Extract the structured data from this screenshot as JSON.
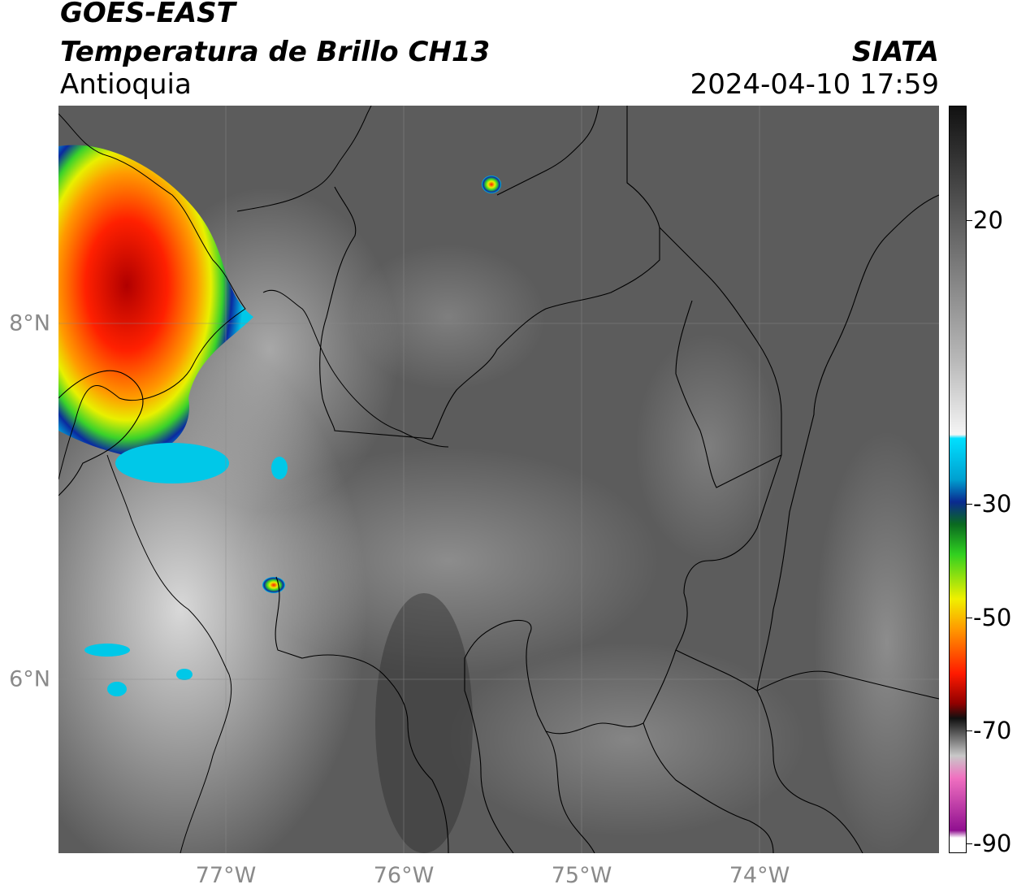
{
  "header": {
    "satellite": "GOES-EAST",
    "product": "Temperatura de Brillo CH13",
    "region": "Antioquia",
    "organization": "SIATA",
    "timestamp": "2024-04-10 17:59"
  },
  "map": {
    "lat_ticks": [
      {
        "label": "8°N",
        "value": 8
      },
      {
        "label": "6°N",
        "value": 6
      }
    ],
    "lon_ticks": [
      {
        "label": "77°W",
        "value": -77
      },
      {
        "label": "76°W",
        "value": -76
      },
      {
        "label": "75°W",
        "value": -75
      },
      {
        "label": "74°W",
        "value": -74
      }
    ],
    "extent": {
      "lon_min": -77.95,
      "lon_max": -73.0,
      "lat_min": 4.95,
      "lat_max": 9.2
    },
    "gridlines": true,
    "background_color": "#5a5a5a",
    "cold_cloud_colors": [
      "#00c8e8",
      "#0a2aa0",
      "#0a8a20",
      "#3ad22a",
      "#e8f000",
      "#ff9a00",
      "#ff2000",
      "#b00000"
    ]
  },
  "colorbar": {
    "ticks": [
      {
        "label": "20",
        "value": 20
      },
      {
        "label": "-30",
        "value": -30
      },
      {
        "label": "-50",
        "value": -50
      },
      {
        "label": "-70",
        "value": -70
      },
      {
        "label": "-90",
        "value": -90
      }
    ],
    "range": [
      -90,
      40
    ]
  }
}
